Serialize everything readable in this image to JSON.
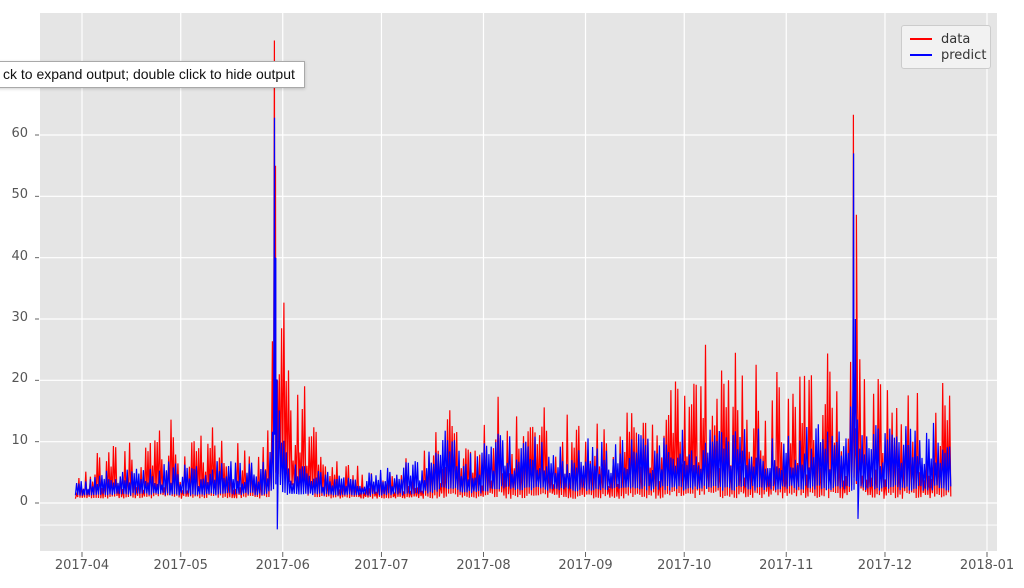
{
  "tooltip": {
    "text": "ck to expand output; double click to hide output"
  },
  "legend": {
    "items": [
      {
        "label": "data",
        "color": "#ff0000"
      },
      {
        "label": "predict",
        "color": "#0000ff"
      }
    ]
  },
  "chart_data": {
    "type": "line",
    "title": "",
    "xlabel": "",
    "ylabel": "",
    "grid": true,
    "background": "#e5e5e5",
    "gridline_color": "#ffffff",
    "tick_color": "#555555",
    "legend_position": "upper right",
    "x_unit": "days since 2017-04-01",
    "xlim_days": [
      -12.8,
      278.3
    ],
    "ylim": [
      -7.8,
      79.9
    ],
    "extra_faint_gridline_value": -3.6,
    "x_ticks": [
      {
        "label": "2017-04",
        "day": 0
      },
      {
        "label": "2017-05",
        "day": 30
      },
      {
        "label": "2017-06",
        "day": 61
      },
      {
        "label": "2017-07",
        "day": 91
      },
      {
        "label": "2017-08",
        "day": 122
      },
      {
        "label": "2017-09",
        "day": 153
      },
      {
        "label": "2017-10",
        "day": 183
      },
      {
        "label": "2017-11",
        "day": 214
      },
      {
        "label": "2017-12",
        "day": 244
      },
      {
        "label": "2018-01",
        "day": 275
      }
    ],
    "y_ticks": [
      {
        "label": "0",
        "value": 0
      },
      {
        "label": "10",
        "value": 10
      },
      {
        "label": "20",
        "value": 20
      },
      {
        "label": "30",
        "value": 30
      },
      {
        "label": "40",
        "value": 40
      },
      {
        "label": "50",
        "value": 50
      },
      {
        "label": "60",
        "value": 60
      }
    ],
    "series": [
      {
        "name": "data",
        "color": "#ff0000",
        "range_days": [
          -2,
          264
        ],
        "envelope": [
          [
            -2,
            0.7,
            5
          ],
          [
            3,
            0.7,
            8
          ],
          [
            8,
            0.7,
            9
          ],
          [
            13,
            0.7,
            11
          ],
          [
            18,
            0.7,
            9
          ],
          [
            23,
            0.7,
            12
          ],
          [
            27,
            0.7,
            14
          ],
          [
            31,
            0.7,
            9
          ],
          [
            36,
            0.7,
            11
          ],
          [
            41,
            0.7,
            13
          ],
          [
            45,
            0.7,
            10
          ],
          [
            49,
            0.7,
            12
          ],
          [
            53,
            0.7,
            9
          ],
          [
            56,
            0.7,
            12
          ],
          [
            57,
            0.8,
            14
          ],
          [
            58,
            2,
            35
          ],
          [
            59,
            4,
            39
          ],
          [
            60,
            4,
            36
          ],
          [
            61,
            3,
            30
          ],
          [
            62,
            2,
            39
          ],
          [
            63,
            2,
            28
          ],
          [
            64,
            2,
            24
          ],
          [
            65,
            2,
            20
          ],
          [
            67,
            2,
            22
          ],
          [
            69,
            1,
            15
          ],
          [
            71,
            0.8,
            12
          ],
          [
            73,
            0.7,
            10
          ],
          [
            76,
            0.7,
            8
          ],
          [
            80,
            0.7,
            7
          ],
          [
            85,
            0.7,
            6
          ],
          [
            90,
            0.7,
            7
          ],
          [
            95,
            0.7,
            6
          ],
          [
            100,
            0.7,
            8
          ],
          [
            104,
            0.7,
            9
          ],
          [
            107,
            0.7,
            13
          ],
          [
            110,
            0.7,
            17
          ],
          [
            113,
            0.7,
            18
          ],
          [
            116,
            0.7,
            14
          ],
          [
            119,
            0.7,
            10
          ],
          [
            122,
            0.7,
            13
          ],
          [
            124,
            0.7,
            17
          ],
          [
            126,
            0.7,
            21
          ],
          [
            129,
            0.7,
            17
          ],
          [
            132,
            0.7,
            15
          ],
          [
            135,
            0.7,
            18
          ],
          [
            138,
            0.7,
            15
          ],
          [
            141,
            0.7,
            19
          ],
          [
            144,
            0.7,
            14
          ],
          [
            147,
            0.7,
            16
          ],
          [
            150,
            0.7,
            12
          ],
          [
            153,
            0.7,
            15
          ],
          [
            156,
            0.7,
            18
          ],
          [
            159,
            0.7,
            13
          ],
          [
            162,
            0.7,
            16
          ],
          [
            165,
            0.7,
            18
          ],
          [
            168,
            0.7,
            14
          ],
          [
            171,
            0.7,
            17
          ],
          [
            174,
            0.7,
            20
          ],
          [
            177,
            0.7,
            16
          ],
          [
            180,
            0.7,
            22
          ],
          [
            183,
            0.7,
            18
          ],
          [
            186,
            0.7,
            24
          ],
          [
            189,
            0.7,
            27
          ],
          [
            192,
            0.7,
            30
          ],
          [
            195,
            0.7,
            24
          ],
          [
            198,
            0.7,
            26
          ],
          [
            201,
            0.7,
            22
          ],
          [
            204,
            0.7,
            25
          ],
          [
            207,
            0.7,
            21
          ],
          [
            210,
            0.7,
            24
          ],
          [
            213,
            0.7,
            20
          ],
          [
            216,
            0.7,
            23
          ],
          [
            219,
            0.7,
            26
          ],
          [
            222,
            0.7,
            21
          ],
          [
            225,
            0.7,
            27
          ],
          [
            228,
            0.7,
            22
          ],
          [
            230,
            0.7,
            19
          ],
          [
            232,
            0.7,
            20
          ],
          [
            234,
            2,
            26
          ],
          [
            235,
            3,
            30
          ],
          [
            236,
            2,
            26
          ],
          [
            237,
            1,
            22
          ],
          [
            239,
            0.7,
            20
          ],
          [
            242,
            0.7,
            23
          ],
          [
            245,
            0.7,
            19
          ],
          [
            248,
            0.7,
            24
          ],
          [
            251,
            0.7,
            20
          ],
          [
            254,
            0.7,
            22
          ],
          [
            257,
            0.7,
            19
          ],
          [
            260,
            0.7,
            23
          ],
          [
            262,
            0.7,
            21
          ],
          [
            264,
            0.7,
            20
          ]
        ],
        "peak_events": [
          [
            58.45,
            75.4
          ],
          [
            58.8,
            55
          ],
          [
            59.4,
            20
          ],
          [
            234.4,
            63.3
          ],
          [
            235.3,
            47
          ]
        ]
      },
      {
        "name": "predict",
        "color": "#0000ff",
        "range_days": [
          -2,
          264
        ],
        "envelope": [
          [
            -2,
            1.2,
            3.5
          ],
          [
            5,
            1.2,
            5
          ],
          [
            12,
            1.2,
            6
          ],
          [
            20,
            1.2,
            7
          ],
          [
            28,
            1.2,
            7
          ],
          [
            35,
            1.2,
            6
          ],
          [
            42,
            1.2,
            7
          ],
          [
            50,
            1.2,
            7
          ],
          [
            56,
            1.2,
            8
          ],
          [
            57,
            1.5,
            9
          ],
          [
            58,
            2,
            22
          ],
          [
            59,
            3,
            30
          ],
          [
            60,
            2,
            20
          ],
          [
            61,
            1.5,
            12
          ],
          [
            62,
            1.2,
            9
          ],
          [
            64,
            1.2,
            7
          ],
          [
            66,
            1.2,
            8
          ],
          [
            68,
            1.2,
            6
          ],
          [
            72,
            1.2,
            6
          ],
          [
            78,
            1.2,
            5
          ],
          [
            85,
            1.2,
            5
          ],
          [
            92,
            1.2,
            6
          ],
          [
            100,
            1.2,
            7
          ],
          [
            104,
            1.5,
            8
          ],
          [
            107,
            1.5,
            10
          ],
          [
            110,
            2,
            12
          ],
          [
            113,
            2,
            11
          ],
          [
            116,
            1.5,
            9
          ],
          [
            119,
            1.5,
            8
          ],
          [
            122,
            1.5,
            10
          ],
          [
            126,
            2,
            12
          ],
          [
            130,
            2,
            11
          ],
          [
            134,
            2,
            10
          ],
          [
            138,
            2,
            11
          ],
          [
            142,
            2,
            12
          ],
          [
            146,
            2,
            10
          ],
          [
            150,
            1.8,
            9
          ],
          [
            154,
            2,
            11
          ],
          [
            158,
            2,
            10
          ],
          [
            162,
            2,
            11
          ],
          [
            166,
            2,
            10
          ],
          [
            170,
            2,
            12
          ],
          [
            174,
            2,
            11
          ],
          [
            178,
            2,
            12
          ],
          [
            182,
            2,
            13
          ],
          [
            186,
            2,
            12
          ],
          [
            190,
            2,
            14
          ],
          [
            194,
            2,
            13
          ],
          [
            198,
            2,
            14
          ],
          [
            202,
            2,
            12
          ],
          [
            206,
            2,
            13
          ],
          [
            210,
            2,
            14
          ],
          [
            214,
            2,
            12
          ],
          [
            218,
            2,
            13
          ],
          [
            222,
            2,
            12
          ],
          [
            226,
            2,
            14
          ],
          [
            230,
            2,
            12
          ],
          [
            232,
            2,
            12
          ],
          [
            234,
            2,
            20
          ],
          [
            235,
            2,
            25
          ],
          [
            236,
            2,
            14
          ],
          [
            238,
            2,
            12
          ],
          [
            241,
            2,
            13
          ],
          [
            245,
            2,
            12
          ],
          [
            249,
            2,
            14
          ],
          [
            253,
            2,
            12
          ],
          [
            257,
            2,
            13
          ],
          [
            260,
            2,
            14
          ],
          [
            262,
            2,
            12
          ],
          [
            264,
            2,
            13
          ]
        ],
        "peak_events": [
          [
            58.5,
            62.8
          ],
          [
            58.9,
            40
          ],
          [
            59.35,
            -4.3
          ],
          [
            234.45,
            57
          ],
          [
            235.0,
            30
          ],
          [
            235.8,
            -2.6
          ]
        ]
      }
    ]
  }
}
